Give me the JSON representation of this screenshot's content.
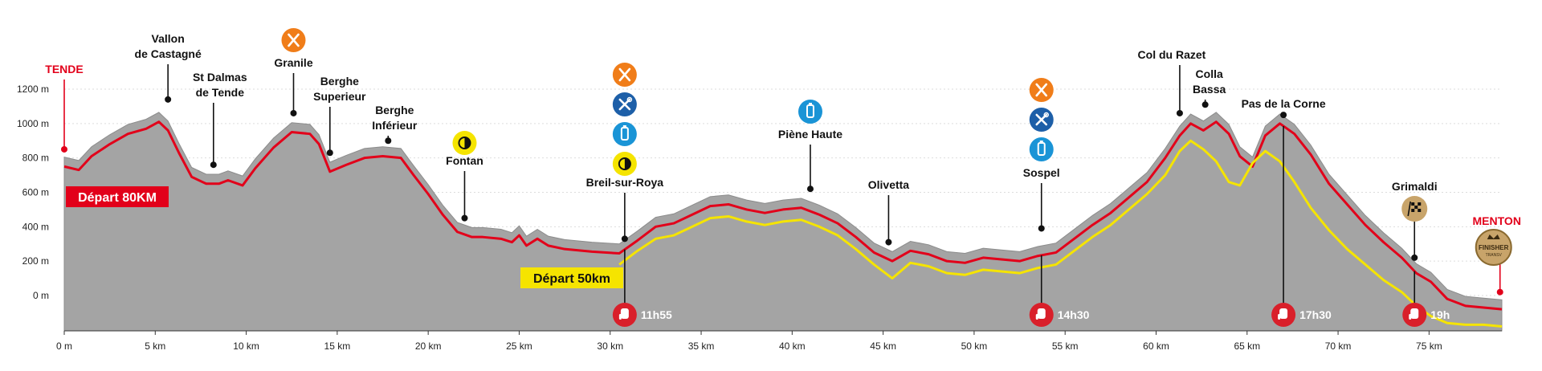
{
  "colors": {
    "terrain": "#a4a4a4",
    "terrain_edge": "#8c8c8c",
    "route_80": "#e2001a",
    "route_50": "#f5e400",
    "grid": "#dddddd",
    "text": "#111111",
    "label_red": "#e2001a",
    "badge_80_bg": "#e2001a",
    "badge_50_bg": "#f5e400",
    "food_icon": "#f07d19",
    "medical_icon": "#1d5fa8",
    "water_icon": "#1a94d6",
    "timing_icon": "#f5e400",
    "cutoff_icon": "#d91f2a",
    "finish_icon": "#c8a46a"
  },
  "chart_data": {
    "type": "area",
    "xlabel": "",
    "ylabel": "",
    "xlim": [
      0,
      79
    ],
    "ylim": [
      -200,
      1300
    ],
    "grid": true,
    "x_ticks": [
      {
        "value": 0,
        "label": "0 m"
      },
      {
        "value": 5,
        "label": "5 km"
      },
      {
        "value": 10,
        "label": "10 km"
      },
      {
        "value": 15,
        "label": "15 km"
      },
      {
        "value": 20,
        "label": "20 km"
      },
      {
        "value": 25,
        "label": "25 km"
      },
      {
        "value": 30,
        "label": "30 km"
      },
      {
        "value": 35,
        "label": "35 km"
      },
      {
        "value": 40,
        "label": "40 km"
      },
      {
        "value": 45,
        "label": "45 km"
      },
      {
        "value": 50,
        "label": "50 km"
      },
      {
        "value": 55,
        "label": "55 km"
      },
      {
        "value": 60,
        "label": "60 km"
      },
      {
        "value": 65,
        "label": "65 km"
      },
      {
        "value": 70,
        "label": "70 km"
      },
      {
        "value": 75,
        "label": "75 km"
      }
    ],
    "y_ticks": [
      {
        "value": 0,
        "label": "0 m"
      },
      {
        "value": 200,
        "label": "200 m"
      },
      {
        "value": 400,
        "label": "400 m"
      },
      {
        "value": 600,
        "label": "600 m"
      },
      {
        "value": 800,
        "label": "800 m"
      },
      {
        "value": 1000,
        "label": "1000 m"
      },
      {
        "value": 1200,
        "label": "1200 m"
      }
    ],
    "series": [
      {
        "name": "80KM",
        "x": [
          0,
          0.8,
          1.5,
          2.5,
          3.5,
          4.5,
          5.2,
          5.7,
          6.3,
          7,
          7.8,
          8.5,
          9,
          9.8,
          10.5,
          11.5,
          12.5,
          13.5,
          14,
          14.6,
          15.5,
          16.5,
          17.5,
          18.5,
          19.2,
          20,
          20.8,
          21.6,
          22.4,
          23,
          24,
          24.6,
          25,
          25.4,
          26,
          26.6,
          27.5,
          29,
          30.5,
          31.5,
          32.5,
          33.5,
          34.5,
          35.5,
          36.5,
          37.5,
          38.5,
          39.5,
          40.5,
          41.5,
          42.5,
          43.5,
          44.5,
          45.5,
          46.5,
          47.5,
          48.5,
          49.5,
          50.5,
          51.5,
          52.5,
          53.5,
          54.5,
          55.5,
          56.5,
          57.5,
          58.5,
          59.5,
          60.5,
          61.3,
          61.9,
          62.6,
          63.3,
          64,
          64.6,
          65.3,
          66,
          66.8,
          67.6,
          68.5,
          69.5,
          70.5,
          71.5,
          72.5,
          73.5,
          74.3,
          75.1,
          76,
          77,
          78,
          79
        ],
        "values": [
          750,
          730,
          810,
          880,
          940,
          970,
          1010,
          960,
          830,
          690,
          650,
          650,
          670,
          640,
          740,
          860,
          950,
          940,
          880,
          720,
          760,
          800,
          810,
          800,
          700,
          590,
          470,
          370,
          340,
          340,
          330,
          310,
          350,
          290,
          330,
          290,
          270,
          255,
          245,
          320,
          400,
          420,
          470,
          520,
          530,
          500,
          480,
          500,
          510,
          470,
          420,
          340,
          250,
          200,
          260,
          240,
          200,
          190,
          220,
          210,
          200,
          230,
          250,
          330,
          410,
          480,
          570,
          660,
          800,
          930,
          1000,
          960,
          1010,
          940,
          810,
          750,
          930,
          1000,
          940,
          820,
          650,
          530,
          410,
          310,
          220,
          130,
          80,
          -20,
          -60,
          -70,
          -80
        ]
      },
      {
        "name": "50km",
        "x": [
          30.5,
          31.5,
          32.5,
          33.5,
          34.5,
          35.5,
          36.5,
          37.5,
          38.5,
          39.5,
          40.5,
          41.5,
          42.5,
          43.5,
          44.5,
          45.5,
          46.5,
          47.5,
          48.5,
          49.5,
          50.5,
          51.5,
          52.5,
          53.5,
          54.5,
          55.5,
          56.5,
          57.5,
          58.5,
          59.5,
          60.5,
          61.3,
          61.9,
          62.6,
          63.3,
          64,
          64.6,
          65.3,
          66,
          66.8,
          67.6,
          68.5,
          69.5,
          70.5,
          71.5,
          72.5,
          73.5,
          74.3,
          75.1,
          76,
          77,
          78,
          79
        ],
        "values": [
          180,
          260,
          330,
          350,
          400,
          450,
          460,
          430,
          410,
          430,
          440,
          400,
          350,
          270,
          180,
          100,
          190,
          170,
          130,
          120,
          150,
          140,
          130,
          160,
          180,
          260,
          340,
          410,
          500,
          590,
          700,
          840,
          900,
          850,
          780,
          660,
          640,
          770,
          840,
          780,
          660,
          510,
          380,
          270,
          180,
          90,
          20,
          -60,
          -120,
          -160,
          -170,
          -170,
          -180
        ]
      }
    ],
    "points": [
      {
        "name": "TENDE",
        "x": 0,
        "y": 850,
        "color": "red"
      },
      {
        "name": "Vallon de Castagné",
        "x": 5.7,
        "y": 1140
      },
      {
        "name": "St Dalmas de Tende",
        "x": 8.2,
        "y": 760
      },
      {
        "name": "Granile",
        "x": 12.6,
        "y": 1060
      },
      {
        "name": "Berghe Superieur",
        "x": 14.6,
        "y": 830
      },
      {
        "name": "Berghe Inférieur",
        "x": 17.8,
        "y": 900
      },
      {
        "name": "Fontan",
        "x": 22.0,
        "y": 450
      },
      {
        "name": "Breil-sur-Roya",
        "x": 30.8,
        "y": 330
      },
      {
        "name": "Piène Haute",
        "x": 41.0,
        "y": 620
      },
      {
        "name": "Olivetta",
        "x": 45.3,
        "y": 310
      },
      {
        "name": "Sospel",
        "x": 53.7,
        "y": 390
      },
      {
        "name": "Col du Razet",
        "x": 61.3,
        "y": 1060
      },
      {
        "name": "Colla Bassa",
        "x": 62.7,
        "y": 1110
      },
      {
        "name": "Pas de la Corne",
        "x": 67.0,
        "y": 1050
      },
      {
        "name": "Grimaldi",
        "x": 74.2,
        "y": 220
      },
      {
        "name": "MENTON",
        "x": 78.9,
        "y": 20,
        "color": "red"
      }
    ],
    "start_labels": [
      {
        "text": "Départ 80KM",
        "series": "80KM"
      },
      {
        "text": "Départ 50km",
        "series": "50km"
      }
    ],
    "cutoffs": [
      {
        "x": 30.8,
        "time": "11h55"
      },
      {
        "x": 53.7,
        "time": "14h30"
      },
      {
        "x": 67.0,
        "time": "17h30"
      },
      {
        "x": 74.2,
        "time": "19h"
      }
    ],
    "aid_stations": [
      {
        "x": 12.6,
        "icons": [
          "food-icon"
        ]
      },
      {
        "x": 22.0,
        "icons": [
          "timing-icon"
        ]
      },
      {
        "x": 30.8,
        "icons": [
          "food-icon",
          "medical-icon",
          "water-icon",
          "timing-icon"
        ]
      },
      {
        "x": 41.0,
        "icons": [
          "water-icon"
        ]
      },
      {
        "x": 53.7,
        "icons": [
          "food-icon",
          "medical-icon",
          "water-icon"
        ]
      },
      {
        "x": 74.2,
        "icons": [
          "finish-flag-icon"
        ]
      },
      {
        "x": 78.9,
        "icons": [
          "finisher-medal-icon"
        ]
      }
    ],
    "medal_text": [
      "FINISHER",
      "TRANSV"
    ]
  }
}
